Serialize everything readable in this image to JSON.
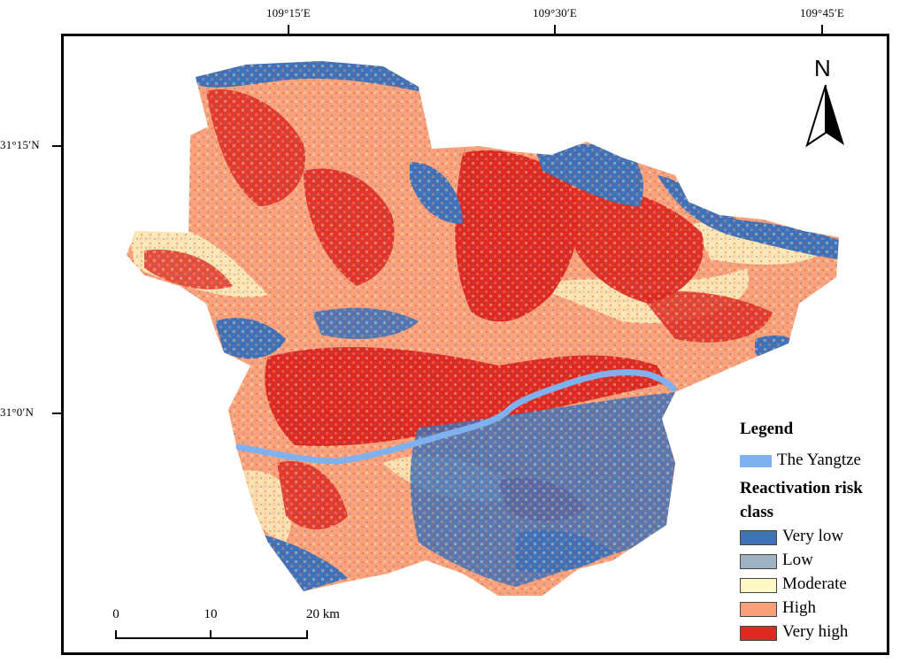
{
  "coordinates": {
    "longitudes": [
      "109°15′E",
      "109°30′E",
      "109°45′E"
    ],
    "latitudes": [
      "31°15′N",
      "31°0′N"
    ]
  },
  "north_label": "N",
  "legend": {
    "title": "Legend",
    "river_label": "The Yangtze",
    "river_color": "#7fb1ef",
    "risk_title": "Reactivation risk class",
    "classes": [
      {
        "label": "Very low",
        "color": "#3f72b8"
      },
      {
        "label": "Low",
        "color": "#9fb2c2"
      },
      {
        "label": "Moderate",
        "color": "#fdf8c4"
      },
      {
        "label": "High",
        "color": "#f8a17a"
      },
      {
        "label": "Very high",
        "color": "#dd2a22"
      }
    ]
  },
  "scalebar": {
    "labels": [
      "0",
      "10",
      "20 km"
    ]
  }
}
